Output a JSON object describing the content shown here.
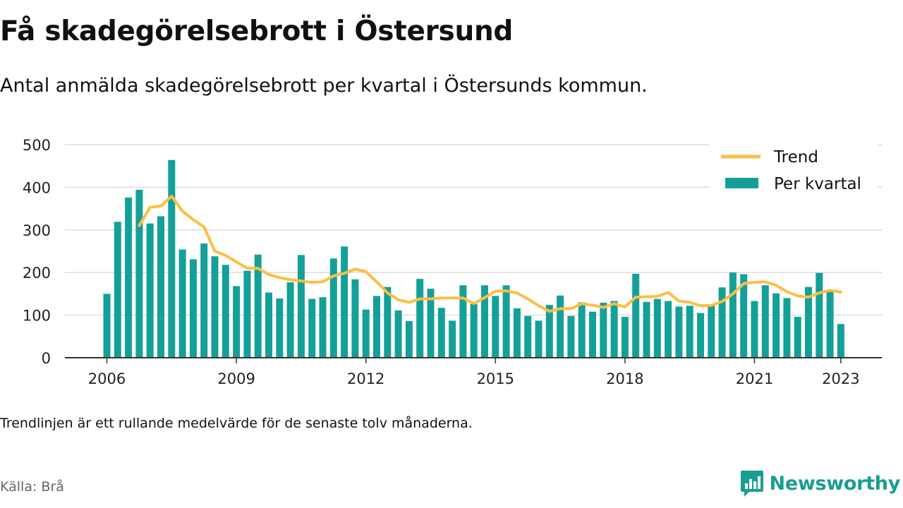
{
  "title": "Få skadegörelsebrott i Östersund",
  "subtitle": "Antal anmälda skadegörelsebrott per kvartal i Östersunds kommun.",
  "note": "Trendlinjen är ett rullande medelvärde för de senaste tolv månaderna.",
  "source": "Källa: Brå",
  "brand": {
    "name": "Newsworthy",
    "logo_icon": "newsworthy-chart-bubble-icon",
    "color": "#1a9d90"
  },
  "colors": {
    "bar": "#14a098",
    "trend": "#fbbf45",
    "grid": "#dddddd",
    "axis": "#333333"
  },
  "chart_data": {
    "type": "bar",
    "ylim": [
      0,
      500
    ],
    "yticks": [
      0,
      100,
      200,
      300,
      400,
      500
    ],
    "xtick_labels": [
      "2006",
      "2009",
      "2012",
      "2015",
      "2018",
      "2021",
      "2023"
    ],
    "xtick_positions": [
      "2006 Q1",
      "2009 Q1",
      "2012 Q1",
      "2015 Q1",
      "2018 Q1",
      "2021 Q1",
      "2023 Q1"
    ],
    "grid": true,
    "legend_position": "top-right",
    "categories": [
      "2006 Q1",
      "2006 Q2",
      "2006 Q3",
      "2006 Q4",
      "2007 Q1",
      "2007 Q2",
      "2007 Q3",
      "2007 Q4",
      "2008 Q1",
      "2008 Q2",
      "2008 Q3",
      "2008 Q4",
      "2009 Q1",
      "2009 Q2",
      "2009 Q3",
      "2009 Q4",
      "2010 Q1",
      "2010 Q2",
      "2010 Q3",
      "2010 Q4",
      "2011 Q1",
      "2011 Q2",
      "2011 Q3",
      "2011 Q4",
      "2012 Q1",
      "2012 Q2",
      "2012 Q3",
      "2012 Q4",
      "2013 Q1",
      "2013 Q2",
      "2013 Q3",
      "2013 Q4",
      "2014 Q1",
      "2014 Q2",
      "2014 Q3",
      "2014 Q4",
      "2015 Q1",
      "2015 Q2",
      "2015 Q3",
      "2015 Q4",
      "2016 Q1",
      "2016 Q2",
      "2016 Q3",
      "2016 Q4",
      "2017 Q1",
      "2017 Q2",
      "2017 Q3",
      "2017 Q4",
      "2018 Q1",
      "2018 Q2",
      "2018 Q3",
      "2018 Q4",
      "2019 Q1",
      "2019 Q2",
      "2019 Q3",
      "2019 Q4",
      "2020 Q1",
      "2020 Q2",
      "2020 Q3",
      "2020 Q4",
      "2021 Q1",
      "2021 Q2",
      "2021 Q3",
      "2021 Q4",
      "2022 Q1",
      "2022 Q2",
      "2022 Q3",
      "2022 Q4",
      "2023 Q1"
    ],
    "series": [
      {
        "name": "Per kvartal",
        "type": "bar",
        "values": [
          150,
          319,
          376,
          394,
          315,
          332,
          464,
          254,
          231,
          268,
          238,
          218,
          168,
          204,
          242,
          153,
          139,
          177,
          241,
          138,
          142,
          233,
          261,
          184,
          113,
          145,
          166,
          111,
          86,
          185,
          162,
          117,
          87,
          170,
          126,
          170,
          145,
          170,
          116,
          98,
          87,
          124,
          146,
          98,
          130,
          108,
          129,
          133,
          96,
          197,
          131,
          138,
          133,
          120,
          122,
          105,
          125,
          165,
          200,
          196,
          133,
          170,
          151,
          140,
          96,
          166,
          199,
          156,
          79
        ]
      },
      {
        "name": "Trend",
        "type": "line",
        "values": [
          null,
          null,
          null,
          310,
          353,
          356,
          379,
          344,
          324,
          307,
          250,
          240,
          225,
          210,
          210,
          195,
          188,
          183,
          180,
          177,
          178,
          192,
          198,
          208,
          202,
          178,
          152,
          136,
          130,
          138,
          138,
          140,
          140,
          140,
          127,
          141,
          156,
          157,
          152,
          138,
          122,
          109,
          115,
          115,
          127,
          123,
          118,
          127,
          119,
          142,
          143,
          144,
          153,
          133,
          130,
          122,
          123,
          132,
          150,
          174,
          177,
          178,
          170,
          155,
          145,
          142,
          152,
          158,
          154
        ]
      }
    ]
  }
}
